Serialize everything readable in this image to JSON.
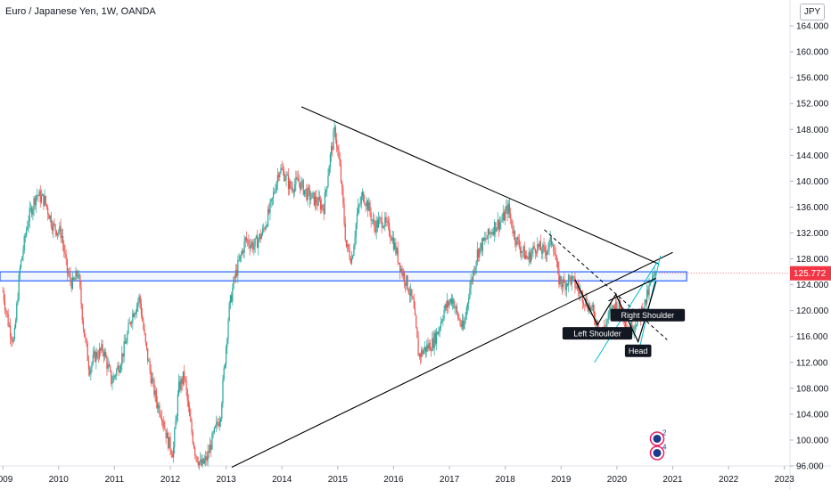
{
  "header": {
    "title": "Euro / Japanese Yen, 1W, OANDA",
    "currency_label": "JPY"
  },
  "colors": {
    "up": "#26a69a",
    "down": "#ef5350",
    "zone": "#2962ff",
    "trend": "#000000",
    "cyan": "#00bcd4",
    "price_label_bg": "#f23645"
  },
  "chart_data": {
    "type": "candlestick",
    "x_range": [
      2008.95,
      2023.1
    ],
    "ylim": [
      96,
      168
    ],
    "y_ticks": [
      96,
      100,
      104,
      108,
      112,
      116,
      120,
      124,
      128,
      132,
      136,
      140,
      144,
      148,
      152,
      156,
      160,
      164
    ],
    "y_tick_labels": [
      "96.000",
      "100.000",
      "104.000",
      "108.000",
      "112.000",
      "116.000",
      "120.000",
      "124.000",
      "128.000",
      "132.000",
      "136.000",
      "140.000",
      "144.000",
      "148.000",
      "152.000",
      "156.000",
      "160.000",
      "164.000"
    ],
    "x_ticks": [
      2009,
      2010,
      2011,
      2012,
      2013,
      2014,
      2015,
      2016,
      2017,
      2018,
      2019,
      2020,
      2021,
      2022,
      2023
    ],
    "x_tick_labels": [
      "2009",
      "2010",
      "2011",
      "2012",
      "2013",
      "2014",
      "2015",
      "2016",
      "2017",
      "2018",
      "2019",
      "2020",
      "2021",
      "2022",
      "2023"
    ],
    "last_price": 125.772,
    "last_price_label": "125.772",
    "price_path": [
      [
        2009.0,
        123
      ],
      [
        2009.1,
        118
      ],
      [
        2009.2,
        115
      ],
      [
        2009.3,
        126
      ],
      [
        2009.45,
        134
      ],
      [
        2009.6,
        138
      ],
      [
        2009.75,
        137
      ],
      [
        2009.9,
        133
      ],
      [
        2010.05,
        132
      ],
      [
        2010.15,
        126
      ],
      [
        2010.25,
        124
      ],
      [
        2010.35,
        126
      ],
      [
        2010.45,
        117
      ],
      [
        2010.55,
        111
      ],
      [
        2010.65,
        113
      ],
      [
        2010.8,
        114
      ],
      [
        2010.95,
        109
      ],
      [
        2011.1,
        112
      ],
      [
        2011.2,
        115
      ],
      [
        2011.3,
        119
      ],
      [
        2011.45,
        122
      ],
      [
        2011.55,
        115
      ],
      [
        2011.65,
        110
      ],
      [
        2011.75,
        106
      ],
      [
        2011.85,
        104
      ],
      [
        2011.95,
        100
      ],
      [
        2012.05,
        98
      ],
      [
        2012.15,
        108
      ],
      [
        2012.25,
        110
      ],
      [
        2012.35,
        103
      ],
      [
        2012.45,
        98
      ],
      [
        2012.55,
        96
      ],
      [
        2012.65,
        97
      ],
      [
        2012.75,
        100
      ],
      [
        2012.9,
        104
      ],
      [
        2013.05,
        120
      ],
      [
        2013.15,
        125
      ],
      [
        2013.25,
        128
      ],
      [
        2013.35,
        131
      ],
      [
        2013.5,
        130
      ],
      [
        2013.65,
        132
      ],
      [
        2013.8,
        136
      ],
      [
        2013.95,
        142
      ],
      [
        2014.05,
        141
      ],
      [
        2014.15,
        139
      ],
      [
        2014.3,
        140
      ],
      [
        2014.45,
        138
      ],
      [
        2014.6,
        137
      ],
      [
        2014.75,
        136
      ],
      [
        2014.85,
        143
      ],
      [
        2014.95,
        148
      ],
      [
        2015.05,
        141
      ],
      [
        2015.15,
        130
      ],
      [
        2015.25,
        128
      ],
      [
        2015.35,
        135
      ],
      [
        2015.45,
        138
      ],
      [
        2015.55,
        136
      ],
      [
        2015.65,
        133
      ],
      [
        2015.8,
        134
      ],
      [
        2015.95,
        132
      ],
      [
        2016.05,
        129
      ],
      [
        2016.15,
        126
      ],
      [
        2016.25,
        124
      ],
      [
        2016.35,
        121
      ],
      [
        2016.45,
        113
      ],
      [
        2016.55,
        114
      ],
      [
        2016.7,
        115
      ],
      [
        2016.8,
        117
      ],
      [
        2016.9,
        120
      ],
      [
        2017.05,
        122
      ],
      [
        2017.15,
        119
      ],
      [
        2017.25,
        117
      ],
      [
        2017.35,
        123
      ],
      [
        2017.5,
        129
      ],
      [
        2017.65,
        131
      ],
      [
        2017.8,
        133
      ],
      [
        2017.95,
        134
      ],
      [
        2018.05,
        136
      ],
      [
        2018.15,
        132
      ],
      [
        2018.25,
        130
      ],
      [
        2018.4,
        128
      ],
      [
        2018.55,
        130
      ],
      [
        2018.7,
        129
      ],
      [
        2018.85,
        131
      ],
      [
        2018.95,
        125
      ],
      [
        2019.05,
        124
      ],
      [
        2019.15,
        125
      ],
      [
        2019.25,
        124
      ],
      [
        2019.4,
        122
      ],
      [
        2019.55,
        120
      ],
      [
        2019.65,
        118
      ],
      [
        2019.75,
        117
      ],
      [
        2019.9,
        120
      ],
      [
        2020.0,
        121
      ],
      [
        2020.1,
        120
      ],
      [
        2020.2,
        117
      ],
      [
        2020.3,
        118
      ],
      [
        2020.4,
        119
      ],
      [
        2020.5,
        121
      ],
      [
        2020.6,
        124
      ],
      [
        2020.7,
        125.8
      ]
    ],
    "zone": {
      "y_low": 124.6,
      "y_high": 126.0,
      "x_start": 2008.95,
      "x_end": 2021.25
    },
    "trendlines": [
      {
        "x1": 2014.35,
        "y1": 151.5,
        "x2": 2020.75,
        "y2": 127.2
      },
      {
        "x1": 2013.1,
        "y1": 95.8,
        "x2": 2021.0,
        "y2": 129.0
      },
      {
        "x1": 2018.7,
        "y1": 132.5,
        "x2": 2020.9,
        "y2": 115.5,
        "dashed": true
      }
    ],
    "pattern_path": [
      [
        2019.25,
        124.8
      ],
      [
        2019.65,
        117.8
      ],
      [
        2019.98,
        122.5
      ],
      [
        2020.38,
        115.2
      ],
      [
        2020.55,
        120.0
      ],
      [
        2020.7,
        124.5
      ]
    ],
    "neckline": {
      "x1": 2019.85,
      "y1": 121.5,
      "x2": 2020.7,
      "y2": 125.0
    },
    "channel": [
      {
        "x1": 2019.6,
        "y1": 112.0,
        "x2": 2020.72,
        "y2": 127.5
      },
      {
        "x1": 2020.4,
        "y1": 114.0,
        "x2": 2020.78,
        "y2": 128.5
      }
    ],
    "annotations": [
      {
        "text": "Left Shoulder",
        "x": 2019.65,
        "y": 116.5
      },
      {
        "text": "Head",
        "x": 2020.38,
        "y": 113.8
      },
      {
        "text": "Right Shoulder",
        "x": 2020.55,
        "y": 119.3
      }
    ],
    "event_badges": [
      {
        "label": "2",
        "x": 2020.72,
        "y": 100.2
      },
      {
        "label": "4",
        "x": 2020.72,
        "y": 98.0
      }
    ]
  }
}
